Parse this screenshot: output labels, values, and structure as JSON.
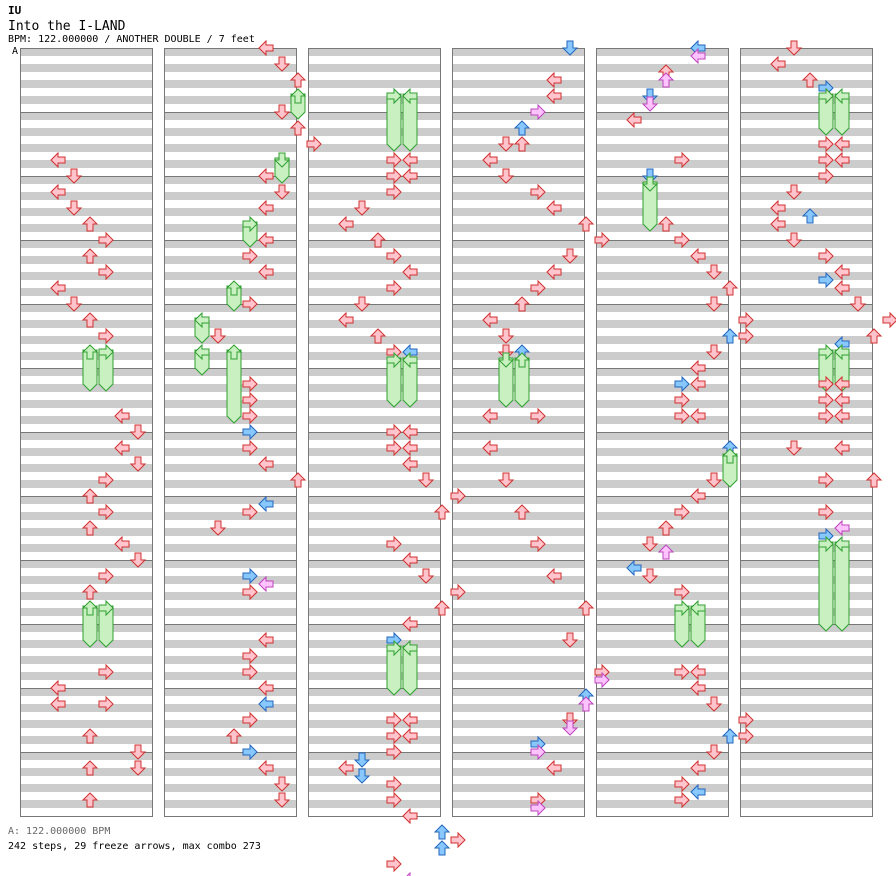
{
  "header": {
    "artist": "IU",
    "title": "Into the I-LAND",
    "info": "BPM: 122.000000 / ANOTHER DOUBLE / 7 feet",
    "bpm_marker": "A"
  },
  "footer": {
    "bpm_line": "A: 122.000000 BPM",
    "stats": "242 steps, 29 freeze arrows, max combo 273"
  },
  "colors": {
    "stripe": "#cccccc",
    "border": "#777777",
    "tap_fill": "#ffc4cc",
    "tap_stroke": "#d03030",
    "blue_fill": "#88c8ff",
    "blue_stroke": "#2266bb",
    "pink_fill": "#ffc4ff",
    "pink_stroke": "#bb44bb",
    "freeze_fill": "#c8f0c0",
    "freeze_stroke": "#30a030",
    "bpm_marker": "#4a8fe0"
  },
  "chart_data": {
    "type": "step-chart",
    "mode": "ANOTHER DOUBLE",
    "bpm": 122,
    "lanes": 8,
    "lane_directions": [
      "left",
      "down",
      "up",
      "right",
      "left",
      "down",
      "up",
      "right"
    ],
    "columns": 6,
    "measures_per_column": 12,
    "rows_per_measure": 8,
    "steps": 242,
    "freeze_arrows": 29,
    "max_combo": 273,
    "notes": [
      {
        "c": 0,
        "r": 14,
        "l": 1
      },
      {
        "c": 0,
        "r": 16,
        "l": 2
      },
      {
        "c": 0,
        "r": 18,
        "l": 1
      },
      {
        "c": 0,
        "r": 20,
        "l": 2
      },
      {
        "c": 0,
        "r": 22,
        "l": 3
      },
      {
        "c": 0,
        "r": 24,
        "l": 4
      },
      {
        "c": 0,
        "r": 26,
        "l": 3
      },
      {
        "c": 0,
        "r": 28,
        "l": 4
      },
      {
        "c": 0,
        "r": 30,
        "l": 1
      },
      {
        "c": 0,
        "r": 32,
        "l": 2
      },
      {
        "c": 0,
        "r": 34,
        "l": 3
      },
      {
        "c": 0,
        "r": 36,
        "l": 4
      },
      {
        "c": 0,
        "r": 38,
        "l": 3,
        "e": 42
      },
      {
        "c": 0,
        "r": 38,
        "l": 4,
        "e": 42
      },
      {
        "c": 0,
        "r": 46,
        "l": 5
      },
      {
        "c": 0,
        "r": 48,
        "l": 6
      },
      {
        "c": 0,
        "r": 50,
        "l": 5
      },
      {
        "c": 0,
        "r": 52,
        "l": 6
      },
      {
        "c": 0,
        "r": 54,
        "l": 4
      },
      {
        "c": 0,
        "r": 56,
        "l": 3
      },
      {
        "c": 0,
        "r": 58,
        "l": 4
      },
      {
        "c": 0,
        "r": 60,
        "l": 3
      },
      {
        "c": 0,
        "r": 62,
        "l": 5
      },
      {
        "c": 0,
        "r": 64,
        "l": 6
      },
      {
        "c": 0,
        "r": 66,
        "l": 4
      },
      {
        "c": 0,
        "r": 68,
        "l": 3
      },
      {
        "c": 0,
        "r": 70,
        "l": 3,
        "e": 74
      },
      {
        "c": 0,
        "r": 70,
        "l": 4,
        "e": 74
      },
      {
        "c": 0,
        "r": 78,
        "l": 4
      },
      {
        "c": 0,
        "r": 80,
        "l": 1
      },
      {
        "c": 0,
        "r": 82,
        "l": 1
      },
      {
        "c": 0,
        "r": 82,
        "l": 4
      },
      {
        "c": 0,
        "r": 86,
        "l": 3
      },
      {
        "c": 0,
        "r": 88,
        "l": 6
      },
      {
        "c": 0,
        "r": 90,
        "l": 3
      },
      {
        "c": 0,
        "r": 90,
        "l": 6
      },
      {
        "c": 0,
        "r": 94,
        "l": 3
      },
      {
        "c": 1,
        "r": 0,
        "l": 5
      },
      {
        "c": 1,
        "r": 2,
        "l": 6
      },
      {
        "c": 1,
        "r": 4,
        "l": 7
      },
      {
        "c": 1,
        "r": 6,
        "l": 7,
        "e": 8
      },
      {
        "c": 1,
        "r": 8,
        "l": 6
      },
      {
        "c": 1,
        "r": 10,
        "l": 7
      },
      {
        "c": 1,
        "r": 12,
        "l": 8
      },
      {
        "c": 1,
        "r": 14,
        "l": 6,
        "e": 16
      },
      {
        "c": 1,
        "r": 16,
        "l": 5
      },
      {
        "c": 1,
        "r": 18,
        "l": 6
      },
      {
        "c": 1,
        "r": 20,
        "l": 5
      },
      {
        "c": 1,
        "r": 22,
        "l": 4,
        "e": 24
      },
      {
        "c": 1,
        "r": 24,
        "l": 5
      },
      {
        "c": 1,
        "r": 26,
        "l": 4
      },
      {
        "c": 1,
        "r": 28,
        "l": 5
      },
      {
        "c": 1,
        "r": 30,
        "l": 3,
        "e": 32
      },
      {
        "c": 1,
        "r": 32,
        "l": 4
      },
      {
        "c": 1,
        "r": 34,
        "l": 1,
        "e": 36
      },
      {
        "c": 1,
        "r": 36,
        "l": 2
      },
      {
        "c": 1,
        "r": 38,
        "l": 1,
        "e": 40
      },
      {
        "c": 1,
        "r": 38,
        "l": 3,
        "e": 46
      },
      {
        "c": 1,
        "r": 42,
        "l": 4
      },
      {
        "c": 1,
        "r": 44,
        "l": 4
      },
      {
        "c": 1,
        "r": 46,
        "l": 4
      },
      {
        "c": 1,
        "r": 48,
        "l": 4,
        "k": "b"
      },
      {
        "c": 1,
        "r": 50,
        "l": 4
      },
      {
        "c": 1,
        "r": 52,
        "l": 5
      },
      {
        "c": 1,
        "r": 54,
        "l": 7
      },
      {
        "c": 1,
        "r": 57,
        "l": 5,
        "k": "b"
      },
      {
        "c": 1,
        "r": 58,
        "l": 4
      },
      {
        "c": 1,
        "r": 60,
        "l": 2
      },
      {
        "c": 1,
        "r": 66,
        "l": 4,
        "k": "b"
      },
      {
        "c": 1,
        "r": 67,
        "l": 5,
        "k": "p"
      },
      {
        "c": 1,
        "r": 68,
        "l": 4
      },
      {
        "c": 1,
        "r": 74,
        "l": 5
      },
      {
        "c": 1,
        "r": 76,
        "l": 4
      },
      {
        "c": 1,
        "r": 78,
        "l": 4
      },
      {
        "c": 1,
        "r": 80,
        "l": 5
      },
      {
        "c": 1,
        "r": 82,
        "l": 5,
        "k": "b"
      },
      {
        "c": 1,
        "r": 84,
        "l": 4
      },
      {
        "c": 1,
        "r": 86,
        "l": 3
      },
      {
        "c": 1,
        "r": 88,
        "l": 4,
        "k": "b"
      },
      {
        "c": 1,
        "r": 90,
        "l": 5
      },
      {
        "c": 1,
        "r": 92,
        "l": 6
      },
      {
        "c": 1,
        "r": 94,
        "l": 6
      },
      {
        "c": 2,
        "r": 6,
        "l": 4,
        "k": "b"
      },
      {
        "c": 2,
        "r": 6,
        "l": 4,
        "e": 12
      },
      {
        "c": 2,
        "r": 6,
        "l": 5,
        "e": 12
      },
      {
        "c": 2,
        "r": 14,
        "l": 4
      },
      {
        "c": 2,
        "r": 14,
        "l": 5
      },
      {
        "c": 2,
        "r": 16,
        "l": 4
      },
      {
        "c": 2,
        "r": 16,
        "l": 5
      },
      {
        "c": 2,
        "r": 18,
        "l": 4
      },
      {
        "c": 2,
        "r": 20,
        "l": 2
      },
      {
        "c": 2,
        "r": 22,
        "l": 1
      },
      {
        "c": 2,
        "r": 24,
        "l": 3
      },
      {
        "c": 2,
        "r": 26,
        "l": 4
      },
      {
        "c": 2,
        "r": 28,
        "l": 5
      },
      {
        "c": 2,
        "r": 30,
        "l": 4
      },
      {
        "c": 2,
        "r": 32,
        "l": 2
      },
      {
        "c": 2,
        "r": 34,
        "l": 1
      },
      {
        "c": 2,
        "r": 36,
        "l": 3
      },
      {
        "c": 2,
        "r": 38,
        "l": 4
      },
      {
        "c": 2,
        "r": 38,
        "l": 5,
        "k": "b"
      },
      {
        "c": 2,
        "r": 39,
        "l": 4,
        "e": 44
      },
      {
        "c": 2,
        "r": 39,
        "l": 5,
        "e": 44
      },
      {
        "c": 2,
        "r": 48,
        "l": 4
      },
      {
        "c": 2,
        "r": 48,
        "l": 5
      },
      {
        "c": 2,
        "r": 50,
        "l": 4
      },
      {
        "c": 2,
        "r": 50,
        "l": 5
      },
      {
        "c": 2,
        "r": 52,
        "l": 5
      },
      {
        "c": 2,
        "r": 54,
        "l": 6
      },
      {
        "c": 2,
        "r": 56,
        "l": 8
      },
      {
        "c": 2,
        "r": 58,
        "l": 7
      },
      {
        "c": 2,
        "r": 62,
        "l": 4
      },
      {
        "c": 2,
        "r": 64,
        "l": 5
      },
      {
        "c": 2,
        "r": 66,
        "l": 6
      },
      {
        "c": 2,
        "r": 68,
        "l": 8
      },
      {
        "c": 2,
        "r": 70,
        "l": 7
      },
      {
        "c": 2,
        "r": 72,
        "l": 5
      },
      {
        "c": 2,
        "r": 74,
        "l": 4,
        "k": "b"
      },
      {
        "c": 2,
        "r": 75,
        "l": 4,
        "e": 80
      },
      {
        "c": 2,
        "r": 75,
        "l": 5,
        "e": 80
      },
      {
        "c": 2,
        "r": 84,
        "l": 4
      },
      {
        "c": 2,
        "r": 84,
        "l": 5
      },
      {
        "c": 2,
        "r": 86,
        "l": 4
      },
      {
        "c": 2,
        "r": 86,
        "l": 5
      },
      {
        "c": 2,
        "r": 88,
        "l": 4
      },
      {
        "c": 2,
        "r": 89,
        "l": 2,
        "k": "b"
      },
      {
        "c": 2,
        "r": 90,
        "l": 1
      },
      {
        "c": 2,
        "r": 91,
        "l": 2,
        "k": "b"
      },
      {
        "c": 2,
        "r": 92,
        "l": 4
      },
      {
        "c": 2,
        "r": 94,
        "l": 4
      },
      {
        "c": 2,
        "r": 96,
        "l": 5
      },
      {
        "c": 2,
        "r": 98,
        "l": 7,
        "k": "b"
      },
      {
        "c": 2,
        "r": 99,
        "l": 8
      },
      {
        "c": 2,
        "r": 100,
        "l": 7,
        "k": "b"
      },
      {
        "c": 2,
        "r": 102,
        "l": 4
      },
      {
        "c": 2,
        "r": 104,
        "l": 5,
        "k": "p"
      },
      {
        "c": 3,
        "r": 0,
        "l": 6,
        "k": "b"
      },
      {
        "c": 3,
        "r": 4,
        "l": 5
      },
      {
        "c": 3,
        "r": 6,
        "l": 5
      },
      {
        "c": 3,
        "r": 8,
        "l": 4,
        "k": "p"
      },
      {
        "c": 3,
        "r": 10,
        "l": 3,
        "k": "b"
      },
      {
        "c": 3,
        "r": 12,
        "l": 2
      },
      {
        "c": 3,
        "r": 12,
        "l": 3
      },
      {
        "c": 3,
        "r": 14,
        "l": 1
      },
      {
        "c": 3,
        "r": 16,
        "l": 2
      },
      {
        "c": 3,
        "r": 18,
        "l": 4
      },
      {
        "c": 3,
        "r": 20,
        "l": 5
      },
      {
        "c": 3,
        "r": 22,
        "l": 7
      },
      {
        "c": 3,
        "r": 24,
        "l": 8
      },
      {
        "c": 3,
        "r": 26,
        "l": 6
      },
      {
        "c": 3,
        "r": 28,
        "l": 5
      },
      {
        "c": 3,
        "r": 30,
        "l": 4
      },
      {
        "c": 3,
        "r": 32,
        "l": 3
      },
      {
        "c": 3,
        "r": 34,
        "l": 1
      },
      {
        "c": 3,
        "r": 36,
        "l": 2
      },
      {
        "c": 3,
        "r": 38,
        "l": 2
      },
      {
        "c": 3,
        "r": 38,
        "l": 3,
        "k": "b"
      },
      {
        "c": 3,
        "r": 39,
        "l": 2,
        "e": 44
      },
      {
        "c": 3,
        "r": 39,
        "l": 3,
        "e": 44
      },
      {
        "c": 3,
        "r": 46,
        "l": 1
      },
      {
        "c": 3,
        "r": 46,
        "l": 4
      },
      {
        "c": 3,
        "r": 50,
        "l": 1
      },
      {
        "c": 3,
        "r": 54,
        "l": 2
      },
      {
        "c": 3,
        "r": 58,
        "l": 3
      },
      {
        "c": 3,
        "r": 62,
        "l": 4
      },
      {
        "c": 3,
        "r": 66,
        "l": 5
      },
      {
        "c": 3,
        "r": 70,
        "l": 7
      },
      {
        "c": 3,
        "r": 74,
        "l": 6
      },
      {
        "c": 3,
        "r": 78,
        "l": 8
      },
      {
        "c": 3,
        "r": 79,
        "l": 8,
        "k": "p"
      },
      {
        "c": 3,
        "r": 81,
        "l": 7,
        "k": "b"
      },
      {
        "c": 3,
        "r": 82,
        "l": 7,
        "k": "p"
      },
      {
        "c": 3,
        "r": 84,
        "l": 6
      },
      {
        "c": 3,
        "r": 85,
        "l": 6,
        "k": "p"
      },
      {
        "c": 3,
        "r": 87,
        "l": 4,
        "k": "b"
      },
      {
        "c": 3,
        "r": 88,
        "l": 4,
        "k": "p"
      },
      {
        "c": 3,
        "r": 90,
        "l": 5
      },
      {
        "c": 3,
        "r": 94,
        "l": 4
      },
      {
        "c": 3,
        "r": 95,
        "l": 4,
        "k": "p"
      },
      {
        "c": 4,
        "r": 0,
        "l": 5,
        "k": "b"
      },
      {
        "c": 4,
        "r": 1,
        "l": 5,
        "k": "p"
      },
      {
        "c": 4,
        "r": 3,
        "l": 3
      },
      {
        "c": 4,
        "r": 4,
        "l": 3,
        "k": "p"
      },
      {
        "c": 4,
        "r": 6,
        "l": 2,
        "k": "b"
      },
      {
        "c": 4,
        "r": 7,
        "l": 2,
        "k": "p"
      },
      {
        "c": 4,
        "r": 9,
        "l": 1
      },
      {
        "c": 4,
        "r": 14,
        "l": 4
      },
      {
        "c": 4,
        "r": 16,
        "l": 2,
        "k": "b"
      },
      {
        "c": 4,
        "r": 17,
        "l": 2,
        "e": 22
      },
      {
        "c": 4,
        "r": 22,
        "l": 3
      },
      {
        "c": 4,
        "r": 24,
        "l": 4
      },
      {
        "c": 4,
        "r": 26,
        "l": 5
      },
      {
        "c": 4,
        "r": 28,
        "l": 6
      },
      {
        "c": 4,
        "r": 30,
        "l": 7
      },
      {
        "c": 4,
        "r": 32,
        "l": 6
      },
      {
        "c": 4,
        "r": 34,
        "l": 8
      },
      {
        "c": 4,
        "r": 36,
        "l": 8
      },
      {
        "c": 4,
        "r": 36,
        "l": 7,
        "k": "b"
      },
      {
        "c": 4,
        "r": 38,
        "l": 6
      },
      {
        "c": 4,
        "r": 40,
        "l": 5
      },
      {
        "c": 4,
        "r": 42,
        "l": 4,
        "k": "b"
      },
      {
        "c": 4,
        "r": 42,
        "l": 5
      },
      {
        "c": 4,
        "r": 44,
        "l": 4
      },
      {
        "c": 4,
        "r": 46,
        "l": 4
      },
      {
        "c": 4,
        "r": 46,
        "l": 5
      },
      {
        "c": 4,
        "r": 50,
        "l": 7,
        "k": "b"
      },
      {
        "c": 4,
        "r": 51,
        "l": 7,
        "e": 54
      },
      {
        "c": 4,
        "r": 54,
        "l": 6
      },
      {
        "c": 4,
        "r": 56,
        "l": 5
      },
      {
        "c": 4,
        "r": 58,
        "l": 4
      },
      {
        "c": 4,
        "r": 60,
        "l": 3
      },
      {
        "c": 4,
        "r": 62,
        "l": 2
      },
      {
        "c": 4,
        "r": 63,
        "l": 3,
        "k": "p"
      },
      {
        "c": 4,
        "r": 65,
        "l": 1,
        "k": "b"
      },
      {
        "c": 4,
        "r": 66,
        "l": 2
      },
      {
        "c": 4,
        "r": 68,
        "l": 4
      },
      {
        "c": 4,
        "r": 70,
        "l": 4,
        "e": 74
      },
      {
        "c": 4,
        "r": 70,
        "l": 5,
        "e": 74
      },
      {
        "c": 4,
        "r": 78,
        "l": 4
      },
      {
        "c": 4,
        "r": 78,
        "l": 5
      },
      {
        "c": 4,
        "r": 80,
        "l": 5
      },
      {
        "c": 4,
        "r": 82,
        "l": 6
      },
      {
        "c": 4,
        "r": 84,
        "l": 8
      },
      {
        "c": 4,
        "r": 86,
        "l": 7,
        "k": "b"
      },
      {
        "c": 4,
        "r": 86,
        "l": 8
      },
      {
        "c": 4,
        "r": 88,
        "l": 6
      },
      {
        "c": 4,
        "r": 90,
        "l": 5
      },
      {
        "c": 4,
        "r": 92,
        "l": 4
      },
      {
        "c": 4,
        "r": 93,
        "l": 5,
        "k": "b"
      },
      {
        "c": 4,
        "r": 94,
        "l": 4
      },
      {
        "c": 5,
        "r": 0,
        "l": 2
      },
      {
        "c": 5,
        "r": 2,
        "l": 1
      },
      {
        "c": 5,
        "r": 4,
        "l": 3
      },
      {
        "c": 5,
        "r": 5,
        "l": 4,
        "k": "b"
      },
      {
        "c": 5,
        "r": 6,
        "l": 4
      },
      {
        "c": 5,
        "r": 6,
        "l": 4,
        "e": 10
      },
      {
        "c": 5,
        "r": 6,
        "l": 5,
        "e": 10
      },
      {
        "c": 5,
        "r": 12,
        "l": 4
      },
      {
        "c": 5,
        "r": 12,
        "l": 5
      },
      {
        "c": 5,
        "r": 14,
        "l": 4
      },
      {
        "c": 5,
        "r": 14,
        "l": 5
      },
      {
        "c": 5,
        "r": 16,
        "l": 4
      },
      {
        "c": 5,
        "r": 18,
        "l": 2
      },
      {
        "c": 5,
        "r": 20,
        "l": 1
      },
      {
        "c": 5,
        "r": 21,
        "l": 3,
        "k": "b"
      },
      {
        "c": 5,
        "r": 22,
        "l": 1
      },
      {
        "c": 5,
        "r": 24,
        "l": 2
      },
      {
        "c": 5,
        "r": 26,
        "l": 4
      },
      {
        "c": 5,
        "r": 28,
        "l": 5
      },
      {
        "c": 5,
        "r": 29,
        "l": 4,
        "k": "b"
      },
      {
        "c": 5,
        "r": 30,
        "l": 5
      },
      {
        "c": 5,
        "r": 32,
        "l": 6
      },
      {
        "c": 5,
        "r": 34,
        "l": 8
      },
      {
        "c": 5,
        "r": 36,
        "l": 7
      },
      {
        "c": 5,
        "r": 37,
        "l": 5,
        "k": "b"
      },
      {
        "c": 5,
        "r": 38,
        "l": 4,
        "e": 42
      },
      {
        "c": 5,
        "r": 38,
        "l": 5,
        "e": 42
      },
      {
        "c": 5,
        "r": 42,
        "l": 4
      },
      {
        "c": 5,
        "r": 42,
        "l": 5
      },
      {
        "c": 5,
        "r": 44,
        "l": 4
      },
      {
        "c": 5,
        "r": 44,
        "l": 5
      },
      {
        "c": 5,
        "r": 46,
        "l": 4
      },
      {
        "c": 5,
        "r": 46,
        "l": 5
      },
      {
        "c": 5,
        "r": 50,
        "l": 2
      },
      {
        "c": 5,
        "r": 50,
        "l": 5
      },
      {
        "c": 5,
        "r": 54,
        "l": 4
      },
      {
        "c": 5,
        "r": 54,
        "l": 7
      },
      {
        "c": 5,
        "r": 58,
        "l": 4
      },
      {
        "c": 5,
        "r": 60,
        "l": 5,
        "k": "p"
      },
      {
        "c": 5,
        "r": 61,
        "l": 4,
        "k": "b"
      },
      {
        "c": 5,
        "r": 62,
        "l": 4,
        "e": 72
      },
      {
        "c": 5,
        "r": 62,
        "l": 5,
        "e": 72
      }
    ]
  }
}
